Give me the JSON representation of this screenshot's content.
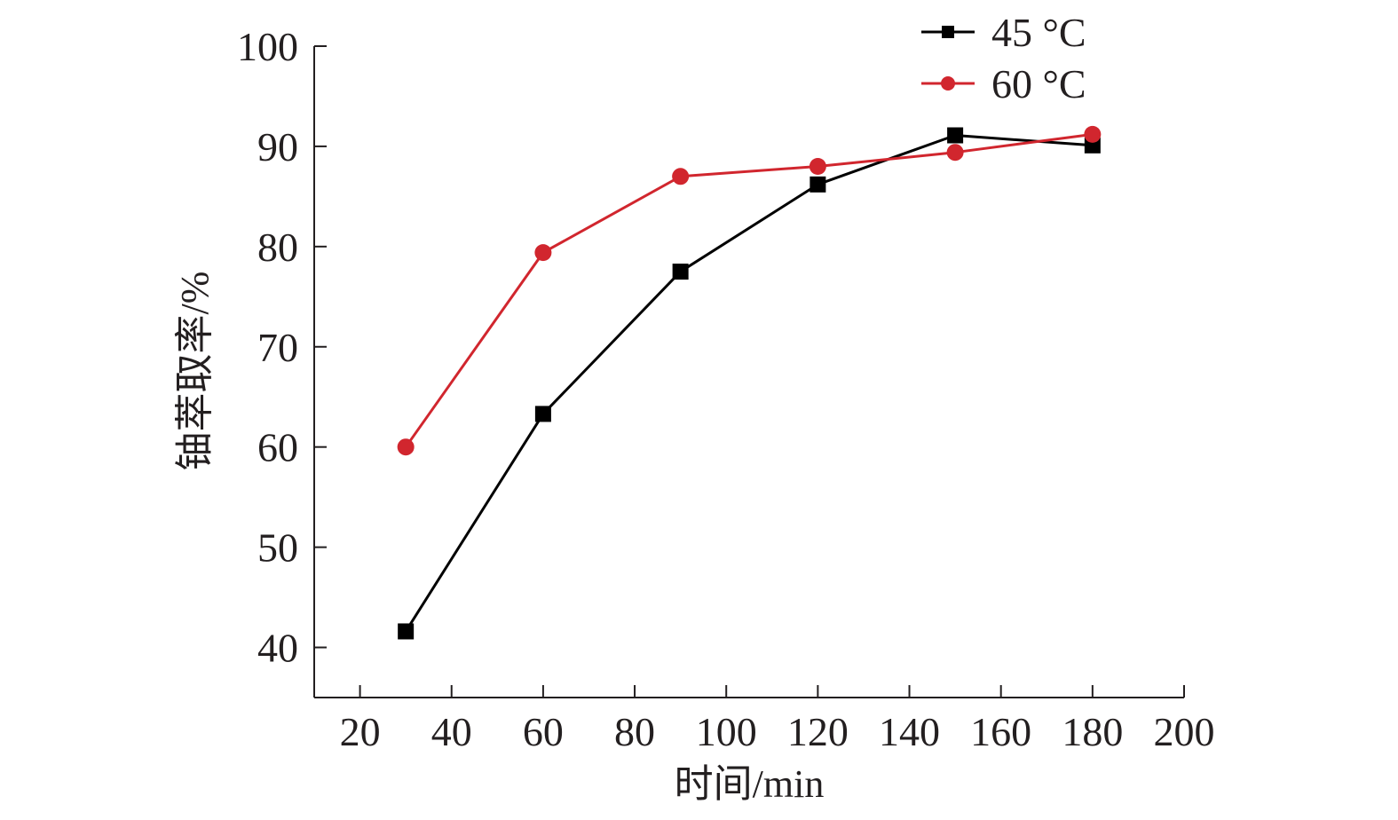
{
  "chart_data": {
    "type": "line",
    "title": "",
    "xlabel": "时间/min",
    "ylabel": "铀萃取率/%",
    "xlim": [
      10,
      200
    ],
    "ylim": [
      35,
      100
    ],
    "xticks": [
      20,
      40,
      60,
      80,
      100,
      120,
      140,
      160,
      180,
      200
    ],
    "yticks": [
      40,
      50,
      60,
      70,
      80,
      90,
      100
    ],
    "grid": false,
    "legend_position": "top-right",
    "x": [
      30,
      60,
      90,
      120,
      150,
      180
    ],
    "series": [
      {
        "name": "45 °C",
        "color": "#000000",
        "marker": "square",
        "values": [
          41.6,
          63.3,
          77.5,
          86.2,
          91.1,
          90.1
        ]
      },
      {
        "name": "60 °C",
        "color": "#d1262e",
        "marker": "circle",
        "values": [
          60.0,
          79.4,
          87.0,
          88.0,
          89.4,
          91.2
        ]
      }
    ]
  }
}
